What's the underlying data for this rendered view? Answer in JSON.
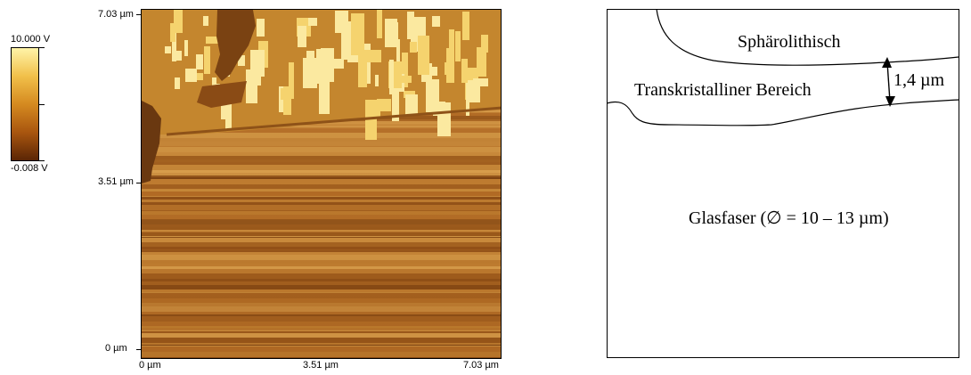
{
  "colorbar": {
    "max_label": "10.000 V",
    "min_label": "-0.008 V",
    "colors": [
      "#fff4a8",
      "#f1c04a",
      "#d58a20",
      "#a9560f",
      "#5a2505"
    ]
  },
  "afm": {
    "y_top_label": "7.03 µm",
    "y_mid_label": "3.51 µm",
    "y_bottom_label": "0 µm",
    "x_left_label": "0 µm",
    "x_mid_label": "3.51 µm",
    "x_right_label": "7.03 µm"
  },
  "sketch": {
    "region_top": "Sphärolithisch",
    "region_middle": "Transkristalliner Bereich",
    "thickness": "1,4 µm",
    "region_bottom": "Glasfaser (∅ = 10 – 13 µm)"
  }
}
